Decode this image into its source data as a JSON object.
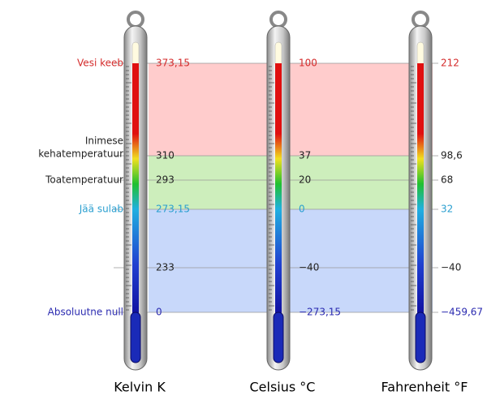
{
  "scales": [
    "Kelvin K",
    "Celsius °C",
    "Fahrenheit °F"
  ],
  "points": [
    {
      "label": [
        "Vesi keeb"
      ],
      "color": "#d42a2a",
      "values": [
        "373,15",
        "100",
        "212"
      ]
    },
    {
      "label": [
        "Inimese",
        "kehatemperatuur"
      ],
      "color": "#222222",
      "values": [
        "310",
        "37",
        "98,6"
      ]
    },
    {
      "label": [
        "Toatemperatuur"
      ],
      "color": "#222222",
      "values": [
        "293",
        "20",
        "68"
      ]
    },
    {
      "label": [
        "Jää sulab"
      ],
      "color": "#2a9fd0",
      "values": [
        "273,15",
        "0",
        "32"
      ]
    },
    {
      "label": [],
      "color": "#222222",
      "values": [
        "233",
        "−40",
        "−40"
      ]
    },
    {
      "label": [
        "Absoluutne null"
      ],
      "color": "#2a2ab0",
      "values": [
        "0",
        "−273,15",
        "−459,67"
      ]
    }
  ]
}
